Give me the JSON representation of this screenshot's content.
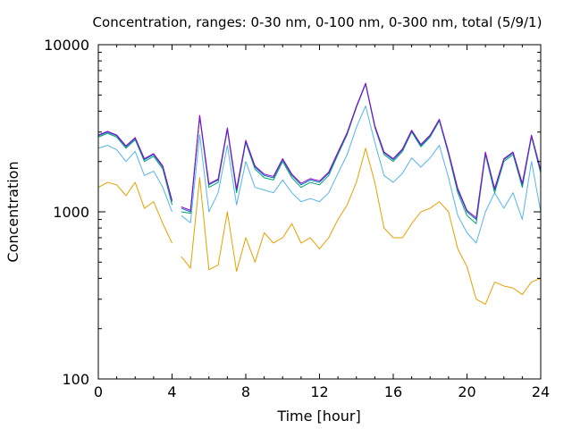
{
  "chart_data": {
    "type": "line",
    "title": "Concentration, ranges: 0-30 nm, 0-100 nm, 0-300 nm, total (5/9/1)",
    "xlabel": "Time [hour]",
    "ylabel": "Concentration",
    "xlim": [
      0,
      24
    ],
    "ylim": [
      100,
      10000
    ],
    "yscale": "log",
    "grid": false,
    "x_ticks": [
      0,
      4,
      8,
      12,
      16,
      20,
      24
    ],
    "x_tick_labels": [
      "0",
      "4",
      "8",
      "12",
      "16",
      "20",
      "24"
    ],
    "y_ticks": [
      100,
      1000,
      10000
    ],
    "y_tick_labels": [
      "100",
      "1000",
      "10000"
    ],
    "x": [
      0,
      0.5,
      1,
      1.5,
      2,
      2.5,
      3,
      3.5,
      4,
      4.5,
      5,
      5.5,
      6,
      6.5,
      7,
      7.5,
      8,
      8.5,
      9,
      9.5,
      10,
      10.5,
      11,
      11.5,
      12,
      12.5,
      13,
      13.5,
      14,
      14.5,
      15,
      15.5,
      16,
      16.5,
      17,
      17.5,
      18,
      18.5,
      19,
      19.5,
      20,
      20.5,
      21,
      21.5,
      22,
      22.5,
      23,
      23.5,
      24
    ],
    "series": [
      {
        "color": "#e6a000",
        "values": [
          1400,
          1500,
          1450,
          1250,
          1500,
          1050,
          1150,
          850,
          650,
          540,
          460,
          1600,
          450,
          480,
          1000,
          440,
          700,
          500,
          750,
          650,
          700,
          850,
          650,
          700,
          600,
          700,
          900,
          1100,
          1500,
          2400,
          1500,
          800,
          700,
          700,
          850,
          1000,
          1050,
          1150,
          1000,
          600,
          470,
          300,
          280,
          380,
          360,
          350,
          320,
          380,
          400
        ]
      },
      {
        "color": "#56b4e9",
        "values": [
          2400,
          2500,
          2350,
          2000,
          2300,
          1650,
          1750,
          1400,
          1000,
          950,
          860,
          2900,
          1000,
          1300,
          2500,
          1100,
          2000,
          1400,
          1350,
          1300,
          1550,
          1300,
          1150,
          1200,
          1150,
          1300,
          1700,
          2200,
          3200,
          4300,
          2600,
          1650,
          1500,
          1700,
          2100,
          1850,
          2100,
          2500,
          1600,
          950,
          750,
          650,
          1000,
          1300,
          1050,
          1300,
          900,
          2000,
          1000
        ]
      },
      {
        "color": "#009e73",
        "values": [
          2800,
          2950,
          2800,
          2400,
          2700,
          2000,
          2150,
          1800,
          1100,
          1000,
          980,
          3700,
          1400,
          1500,
          3100,
          1300,
          2600,
          1800,
          1600,
          1550,
          2000,
          1600,
          1400,
          1500,
          1450,
          1650,
          2200,
          2900,
          4200,
          5800,
          3200,
          2200,
          2000,
          2300,
          3000,
          2450,
          2800,
          3500,
          2200,
          1300,
          950,
          850,
          2200,
          1300,
          2000,
          2200,
          1400,
          2800,
          1700
        ]
      },
      {
        "color": "#0072b2",
        "values": [
          2850,
          3000,
          2850,
          2450,
          2750,
          2050,
          2200,
          1850,
          1150,
          1050,
          1000,
          3750,
          1450,
          1550,
          3150,
          1350,
          2650,
          1850,
          1650,
          1600,
          2050,
          1650,
          1450,
          1550,
          1500,
          1700,
          2250,
          2950,
          4250,
          5850,
          3250,
          2250,
          2050,
          2350,
          3050,
          2500,
          2850,
          3550,
          2250,
          1350,
          1000,
          900,
          2250,
          1350,
          2050,
          2250,
          1450,
          2850,
          1750
        ]
      },
      {
        "color": "#9400d3",
        "values": [
          2880,
          3030,
          2880,
          2480,
          2780,
          2080,
          2230,
          1880,
          1170,
          1070,
          1020,
          3780,
          1470,
          1570,
          3180,
          1370,
          2680,
          1880,
          1680,
          1630,
          2080,
          1680,
          1480,
          1580,
          1530,
          1730,
          2280,
          2980,
          4280,
          5880,
          3280,
          2280,
          2080,
          2380,
          3080,
          2530,
          2880,
          3580,
          2280,
          1380,
          1020,
          920,
          2280,
          1380,
          2080,
          2280,
          1480,
          2880,
          1780
        ]
      }
    ]
  }
}
